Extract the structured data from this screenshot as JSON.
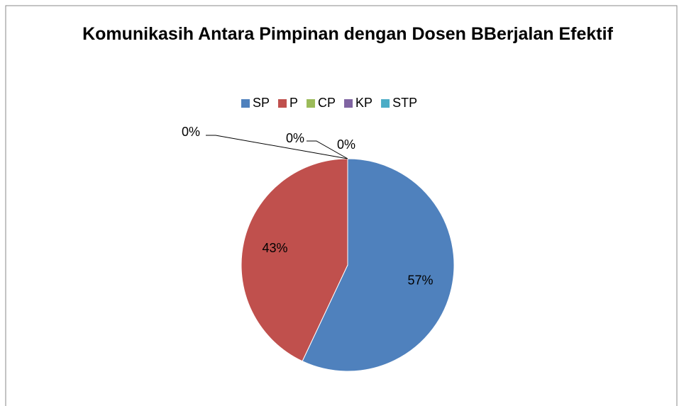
{
  "chart_data": {
    "type": "pie",
    "title": "Komunikasih Antara Pimpinan dengan Dosen BBerjalan Efektif",
    "categories": [
      "SP",
      "P",
      "CP",
      "KP",
      "STP"
    ],
    "values": [
      57,
      43,
      0,
      0,
      0
    ],
    "value_labels": [
      "57%",
      "43%",
      "0%",
      "0%",
      "0%"
    ],
    "colors": [
      "#4f81bd",
      "#c0504d",
      "#9bbb59",
      "#8064a2",
      "#4bacc6"
    ],
    "legend": "top"
  }
}
